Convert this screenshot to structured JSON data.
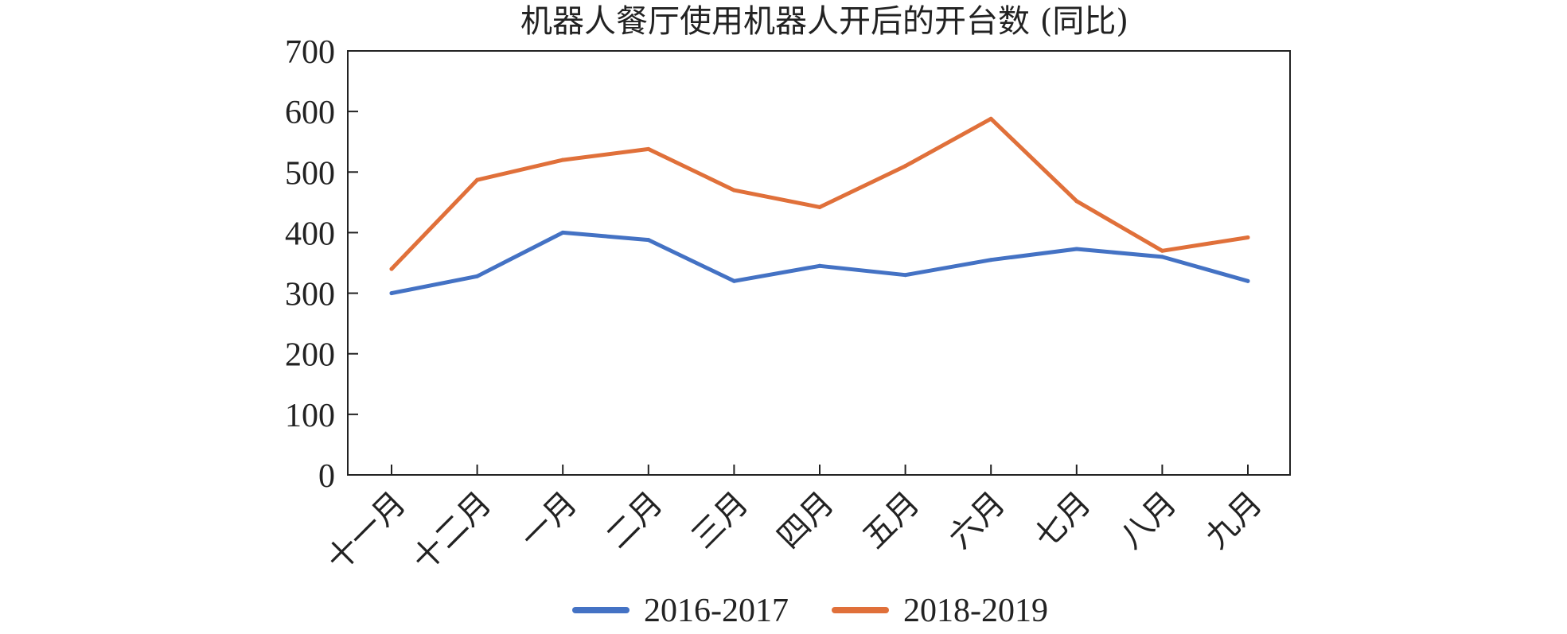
{
  "chart_data": {
    "type": "line",
    "title": "机器人餐厅使用机器人开后的开台数 (同比)",
    "xlabel": "",
    "ylabel": "",
    "categories": [
      "十一月",
      "十二月",
      "一月",
      "二月",
      "三月",
      "四月",
      "五月",
      "六月",
      "七月",
      "八月",
      "九月"
    ],
    "ylim": [
      0,
      700
    ],
    "yticks": [
      0,
      100,
      200,
      300,
      400,
      500,
      600,
      700
    ],
    "grid": false,
    "legend_position": "bottom",
    "series": [
      {
        "name": "2016-2017",
        "color": "#4472C4",
        "values": [
          300,
          328,
          400,
          388,
          320,
          345,
          330,
          355,
          373,
          360,
          320
        ]
      },
      {
        "name": "2018-2019",
        "color": "#E0703A",
        "values": [
          340,
          487,
          520,
          538,
          470,
          442,
          510,
          588,
          452,
          370,
          392
        ]
      }
    ]
  }
}
